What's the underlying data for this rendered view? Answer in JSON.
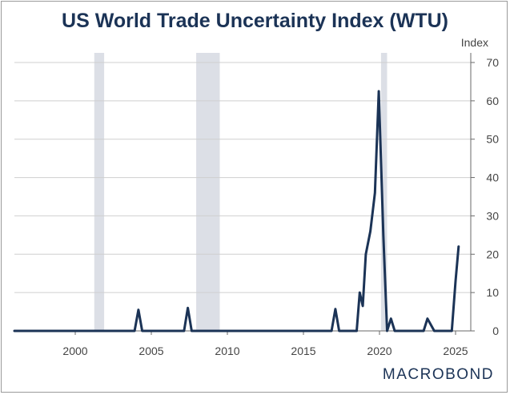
{
  "chart_data": {
    "type": "line",
    "title": "US World Trade Uncertainty Index (WTU)",
    "ylabel": "Index",
    "xlabel": "",
    "xlim": [
      1996,
      2026
    ],
    "ylim": [
      0,
      70
    ],
    "y_ticks": [
      0,
      10,
      20,
      30,
      40,
      50,
      60,
      70
    ],
    "x_ticks": [
      2000,
      2005,
      2010,
      2015,
      2020,
      2025
    ],
    "grid": true,
    "legend": "none",
    "y_axis_side": "right",
    "line_color": "#1b3356",
    "shade_color": "#dcdfe6",
    "recessions": [
      [
        2001.25,
        2001.9
      ],
      [
        2007.95,
        2009.5
      ],
      [
        2020.1,
        2020.5
      ]
    ],
    "series": [
      {
        "x": [
          1996.0,
          2003.9,
          2004.15,
          2004.4,
          2007.15,
          2007.4,
          2007.65,
          2016.85,
          2017.1,
          2017.35,
          2018.5,
          2018.7,
          2018.9,
          2019.1,
          2019.4,
          2019.7,
          2019.95,
          2020.25,
          2020.5,
          2020.75,
          2021.0,
          2022.9,
          2023.15,
          2023.6,
          2024.75,
          2025.0,
          2025.2
        ],
        "values": [
          0,
          0,
          5.5,
          0,
          0,
          6,
          0,
          0,
          5.7,
          0,
          0,
          10,
          6.5,
          20,
          26,
          36,
          62.5,
          25,
          0,
          3.2,
          0,
          0,
          3.2,
          0,
          0,
          13,
          22
        ]
      }
    ]
  },
  "brand": "MACROBOND"
}
